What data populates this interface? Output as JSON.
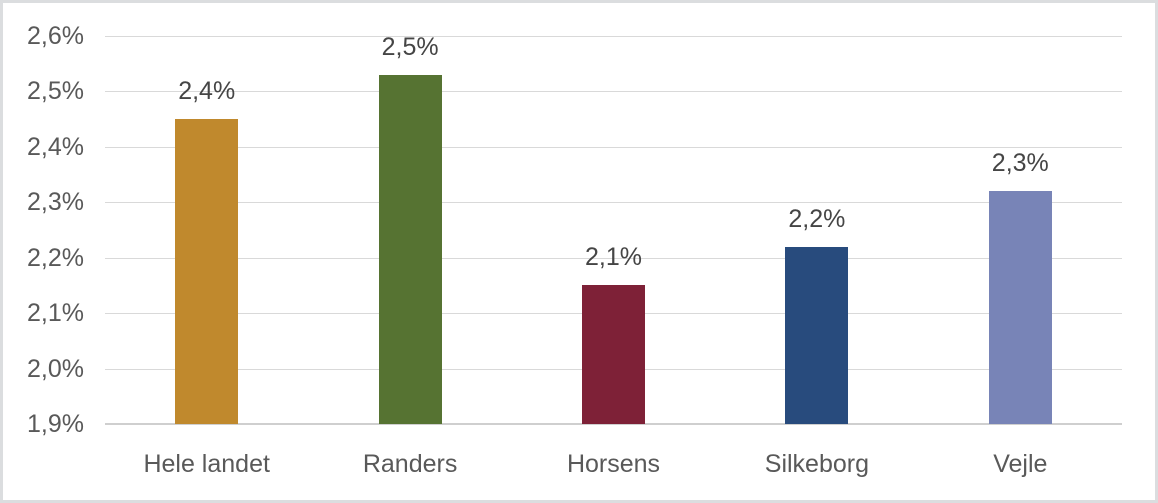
{
  "chart_data": {
    "type": "bar",
    "categories": [
      "Hele landet",
      "Randers",
      "Horsens",
      "Silkeborg",
      "Vejle"
    ],
    "values": [
      2.45,
      2.53,
      2.15,
      2.22,
      2.32
    ],
    "data_labels": [
      "2,4%",
      "2,5%",
      "2,1%",
      "2,2%",
      "2,3%"
    ],
    "bar_colors": [
      "#C0892D",
      "#567332",
      "#7E2137",
      "#284B7D",
      "#7884B7"
    ],
    "tick_values": [
      1.9,
      2.0,
      2.1,
      2.2,
      2.3,
      2.4,
      2.5,
      2.6
    ],
    "tick_labels": [
      "1,9%",
      "2,0%",
      "2,1%",
      "2,2%",
      "2,3%",
      "2,4%",
      "2,5%",
      "2,6%"
    ],
    "ylim": [
      1.9,
      2.6
    ],
    "title": "",
    "xlabel": "",
    "ylabel": "",
    "grid": true,
    "legend_position": "none",
    "decimal_separator": ","
  },
  "style_colors": {
    "gridline": "#D9D9D9",
    "axis_line": "#CFCFCF",
    "tick_text": "#595959",
    "category_text": "#595959",
    "value_label_text": "#454545",
    "frame_border": "#DBDDDF",
    "background": "#FFFFFF"
  }
}
